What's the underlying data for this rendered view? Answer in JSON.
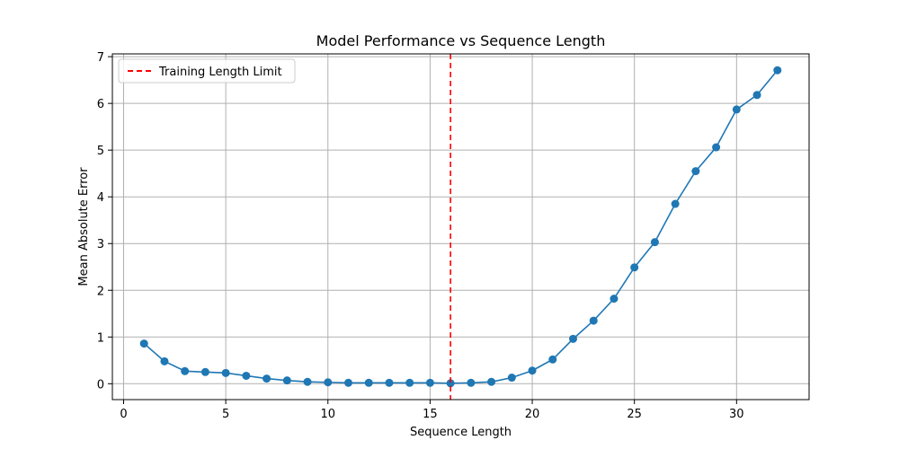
{
  "chart_data": {
    "type": "line",
    "title": "Model Performance vs Sequence Length",
    "xlabel": "Sequence Length",
    "ylabel": "Mean Absolute Error",
    "xlim": [
      -0.55,
      33.55
    ],
    "ylim": [
      -0.34,
      7.06
    ],
    "xticks": [
      0,
      5,
      10,
      15,
      20,
      25,
      30
    ],
    "yticks": [
      0,
      1,
      2,
      3,
      4,
      5,
      6,
      7
    ],
    "grid": true,
    "legend_position": "top-left",
    "series": [
      {
        "color": "#1f77b4",
        "marker": "circle",
        "x": [
          1,
          2,
          3,
          4,
          5,
          6,
          7,
          8,
          9,
          10,
          11,
          12,
          13,
          14,
          15,
          16,
          17,
          18,
          19,
          20,
          21,
          22,
          23,
          24,
          25,
          26,
          27,
          28,
          29,
          30,
          31,
          32
        ],
        "y": [
          0.86,
          0.48,
          0.27,
          0.25,
          0.23,
          0.17,
          0.11,
          0.07,
          0.04,
          0.03,
          0.02,
          0.02,
          0.02,
          0.02,
          0.02,
          0.01,
          0.02,
          0.04,
          0.13,
          0.28,
          0.52,
          0.96,
          1.35,
          1.82,
          2.49,
          3.03,
          3.85,
          4.55,
          5.06,
          5.87,
          6.18,
          6.71
        ]
      }
    ],
    "reference_line": {
      "orientation": "vertical",
      "x": 16,
      "label": "Training Length Limit",
      "color": "#ff0000",
      "style": "dashed"
    }
  }
}
